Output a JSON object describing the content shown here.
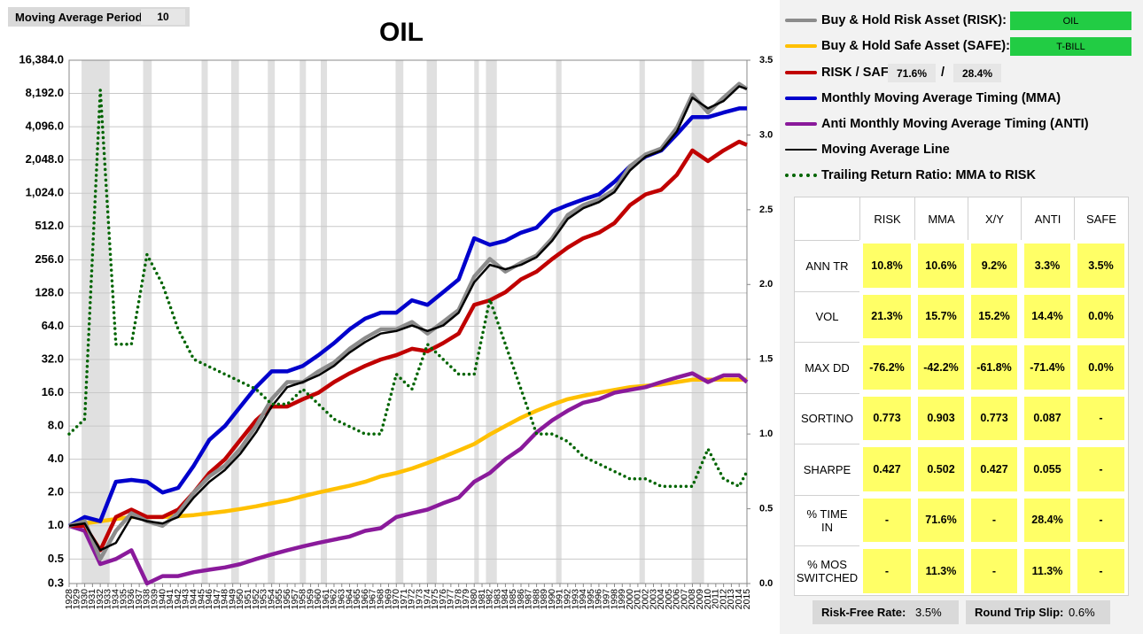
{
  "chart_data": {
    "type": "line",
    "title": "OIL",
    "xlim": [
      1928,
      2015
    ],
    "xticks": [
      1928,
      1929,
      1930,
      1931,
      1932,
      1933,
      1934,
      1935,
      1936,
      1937,
      1938,
      1939,
      1940,
      1941,
      1942,
      1943,
      1944,
      1945,
      1946,
      1947,
      1948,
      1949,
      1950,
      1951,
      1952,
      1953,
      1954,
      1955,
      1956,
      1957,
      1958,
      1959,
      1960,
      1961,
      1962,
      1963,
      1964,
      1965,
      1966,
      1967,
      1968,
      1969,
      1970,
      1971,
      1972,
      1973,
      1974,
      1975,
      1976,
      1977,
      1978,
      1979,
      1980,
      1981,
      1982,
      1983,
      1984,
      1985,
      1986,
      1987,
      1988,
      1989,
      1990,
      1991,
      1992,
      1993,
      1994,
      1995,
      1996,
      1997,
      1998,
      1999,
      2000,
      2001,
      2002,
      2003,
      2004,
      2005,
      2006,
      2007,
      2008,
      2009,
      2010,
      2011,
      2012,
      2013,
      2014,
      2015
    ],
    "ylim": [
      0.3,
      16384
    ],
    "log_scale": true,
    "grid": true,
    "yticks": [
      0.3,
      0.5,
      {
        "value": 1,
        "label": "1.0"
      },
      {
        "value": 2,
        "label": "2.0"
      },
      {
        "value": 4,
        "label": "4.0"
      },
      {
        "value": 8,
        "label": "8.0"
      },
      {
        "value": 16,
        "label": "16.0"
      },
      {
        "value": 32,
        "label": "32.0"
      },
      {
        "value": 64,
        "label": "64.0"
      },
      {
        "value": 128,
        "label": "128.0"
      },
      {
        "value": 256,
        "label": "256.0"
      },
      {
        "value": 512,
        "label": "512.0"
      },
      {
        "value": 1024,
        "label": "1,024.0"
      },
      {
        "value": 2048,
        "label": "2,048.0"
      },
      {
        "value": 4096,
        "label": "4,096.0"
      },
      {
        "value": 8192,
        "label": "8,192.0"
      },
      {
        "value": 16384,
        "label": "16,384.0"
      }
    ],
    "y2lim": [
      0,
      3.5
    ],
    "y2ticks": [
      {
        "value": 0,
        "label": "0.0"
      },
      0.5,
      {
        "value": 1,
        "label": "1.0"
      },
      1.5,
      {
        "value": 2,
        "label": "2.0"
      },
      2.5,
      {
        "value": 3,
        "label": "3.0"
      },
      3.5
    ],
    "shaded_periods": [
      [
        1929.6,
        1933.2
      ],
      [
        1937.5,
        1938.6
      ],
      [
        1945.0,
        1945.8
      ],
      [
        1948.8,
        1949.8
      ],
      [
        1953.5,
        1954.4
      ],
      [
        1957.6,
        1958.4
      ],
      [
        1960.3,
        1961.1
      ],
      [
        1969.9,
        1970.9
      ],
      [
        1973.9,
        1975.2
      ],
      [
        1980.0,
        1980.6
      ],
      [
        1981.5,
        1982.9
      ],
      [
        1990.5,
        1991.2
      ],
      [
        2001.2,
        2001.9
      ],
      [
        2007.9,
        2009.5
      ]
    ],
    "x": [
      1928,
      1930,
      1932,
      1934,
      1936,
      1938,
      1940,
      1942,
      1944,
      1946,
      1948,
      1950,
      1952,
      1954,
      1956,
      1958,
      1960,
      1962,
      1964,
      1966,
      1968,
      1970,
      1972,
      1974,
      1976,
      1978,
      1980,
      1982,
      1984,
      1986,
      1988,
      1990,
      1992,
      1994,
      1996,
      1998,
      2000,
      2002,
      2004,
      2006,
      2008,
      2010,
      2012,
      2014,
      2015
    ],
    "series": [
      {
        "name": "Buy & Hold Risk Asset (RISK):",
        "color": "#8c8c8c",
        "width": 4.5,
        "values": [
          1.0,
          1.1,
          0.5,
          0.9,
          1.3,
          1.1,
          1.0,
          1.3,
          2.0,
          2.8,
          3.5,
          5,
          8,
          14,
          20,
          20,
          25,
          30,
          40,
          50,
          60,
          60,
          70,
          55,
          70,
          90,
          180,
          260,
          200,
          240,
          280,
          400,
          650,
          800,
          900,
          1100,
          1800,
          2300,
          2600,
          4000,
          8000,
          5500,
          7500,
          10000,
          9000
        ]
      },
      {
        "name": "Buy & Hold Safe Asset (SAFE):",
        "color": "#ffc000",
        "width": 4.5,
        "values": [
          1.0,
          1.05,
          1.1,
          1.15,
          1.2,
          1.2,
          1.2,
          1.22,
          1.25,
          1.3,
          1.35,
          1.42,
          1.5,
          1.6,
          1.7,
          1.85,
          2.0,
          2.15,
          2.3,
          2.5,
          2.8,
          3.0,
          3.3,
          3.7,
          4.2,
          4.8,
          5.5,
          6.7,
          8,
          9.5,
          11,
          12.5,
          14,
          15,
          16,
          17,
          18,
          18.5,
          19,
          20,
          21,
          21,
          21,
          21,
          21
        ]
      },
      {
        "name": "RISK / SAFE (X/Y):",
        "color": "#c00000",
        "width": 4.5,
        "values": [
          1,
          1.0,
          0.6,
          1.2,
          1.4,
          1.2,
          1.2,
          1.4,
          2.0,
          3,
          4,
          6,
          9,
          12,
          12,
          14,
          16,
          20,
          24,
          28,
          32,
          35,
          40,
          38,
          45,
          55,
          100,
          110,
          130,
          170,
          200,
          260,
          330,
          400,
          450,
          550,
          800,
          1000,
          1100,
          1500,
          2500,
          2000,
          2500,
          3000,
          2800
        ]
      },
      {
        "name": "Monthly Moving Average Timing (MMA)",
        "color": "#0000cc",
        "width": 4.5,
        "values": [
          1.0,
          1.2,
          1.1,
          2.5,
          2.6,
          2.5,
          2.0,
          2.2,
          3.5,
          6,
          8,
          12,
          18,
          25,
          25,
          28,
          35,
          45,
          60,
          75,
          85,
          85,
          110,
          100,
          130,
          170,
          400,
          350,
          380,
          450,
          500,
          700,
          800,
          900,
          1000,
          1300,
          1800,
          2200,
          2500,
          3500,
          5000,
          5000,
          5500,
          6000,
          6000
        ]
      },
      {
        "name": "Anti Monthly Moving Average Timing (ANTI)",
        "color": "#8a1a9b",
        "width": 4.5,
        "values": [
          1,
          0.9,
          0.45,
          0.5,
          0.6,
          0.3,
          0.35,
          0.35,
          0.38,
          0.4,
          0.42,
          0.45,
          0.5,
          0.55,
          0.6,
          0.65,
          0.7,
          0.75,
          0.8,
          0.9,
          0.95,
          1.2,
          1.3,
          1.4,
          1.6,
          1.8,
          2.5,
          3.0,
          4,
          5,
          7,
          9,
          11,
          13,
          14,
          16,
          17,
          18,
          20,
          22,
          24,
          20,
          23,
          23,
          20
        ]
      },
      {
        "name": "Moving Average Line",
        "color": "#000000",
        "width": 2.5,
        "values": [
          1.0,
          1.05,
          0.6,
          0.7,
          1.2,
          1.1,
          1.05,
          1.2,
          1.8,
          2.5,
          3.2,
          4.5,
          7,
          12,
          18,
          20,
          23,
          28,
          37,
          46,
          55,
          58,
          65,
          58,
          65,
          85,
          160,
          230,
          210,
          230,
          270,
          380,
          600,
          750,
          850,
          1050,
          1650,
          2200,
          2500,
          3700,
          7500,
          6000,
          7000,
          9500,
          9000
        ]
      },
      {
        "name": "Trailing Return Ratio: MMA to RISK",
        "color": "#006400",
        "width": 3.5,
        "dotted": true,
        "axis": "y2",
        "values": [
          1.0,
          1.1,
          3.3,
          1.6,
          1.6,
          2.2,
          2.0,
          1.7,
          1.5,
          1.45,
          1.4,
          1.35,
          1.3,
          1.2,
          1.2,
          1.3,
          1.2,
          1.1,
          1.05,
          1.0,
          1.0,
          1.4,
          1.3,
          1.6,
          1.5,
          1.4,
          1.4,
          1.9,
          1.6,
          1.3,
          1.0,
          1.0,
          0.95,
          0.85,
          0.8,
          0.75,
          0.7,
          0.7,
          0.65,
          0.65,
          0.65,
          0.9,
          0.7,
          0.65,
          0.75
        ]
      }
    ]
  },
  "inputs": {
    "period_label": "Moving Average Period:",
    "period": 10,
    "risk_asset": "OIL",
    "safe_asset": "T-BILL",
    "x_weight": "71.6%",
    "separator": "/",
    "y_weight": "28.4%"
  },
  "stats": {
    "columns": [
      "RISK",
      "MMA",
      "X/Y",
      "ANTI",
      "SAFE"
    ],
    "rows": [
      {
        "label": "ANN TR",
        "cells": [
          "10.8%",
          "10.6%",
          "9.2%",
          "3.3%",
          "3.5%"
        ]
      },
      {
        "label": "VOL",
        "cells": [
          "21.3%",
          "15.7%",
          "15.2%",
          "14.4%",
          "0.0%"
        ]
      },
      {
        "label": "MAX DD",
        "cells": [
          "-76.2%",
          "-42.2%",
          "-61.8%",
          "-71.4%",
          "0.0%"
        ]
      },
      {
        "label": "SORTINO",
        "cells": [
          "0.773",
          "0.903",
          "0.773",
          "0.087",
          "-"
        ]
      },
      {
        "label": "SHARPE",
        "cells": [
          "0.427",
          "0.502",
          "0.427",
          "0.055",
          "-"
        ]
      },
      {
        "label": "% TIME IN",
        "cells": [
          "-",
          "71.6%",
          "-",
          "28.4%",
          "-"
        ]
      },
      {
        "label": "% MOS SWITCHED",
        "cells": [
          "-",
          "11.3%",
          "-",
          "11.3%",
          "-"
        ]
      }
    ]
  },
  "footer": {
    "rate_label": "Risk-Free Rate:",
    "rate": "3.5%",
    "slip_label": "Round Trip Slip:",
    "slip": "0.6%"
  }
}
